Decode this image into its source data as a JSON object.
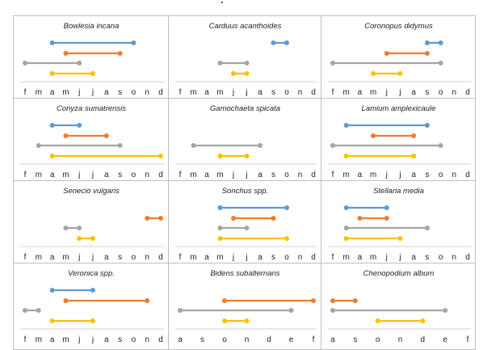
{
  "palette": [
    "#5b9bd5",
    "#ed7d31",
    "#a5a5a5",
    "#ffc000"
  ],
  "chart_data": [
    {
      "type": "range",
      "title": "Bowlesia incana",
      "categories": [
        "f",
        "m",
        "a",
        "m",
        "j",
        "j",
        "a",
        "s",
        "o",
        "n",
        "d"
      ],
      "series": [
        {
          "color": "#5b9bd5",
          "range": [
            2,
            8
          ]
        },
        {
          "color": "#ed7d31",
          "range": [
            3,
            7
          ]
        },
        {
          "color": "#a5a5a5",
          "range": [
            0,
            4
          ]
        },
        {
          "color": "#ffc000",
          "range": [
            2,
            5
          ]
        }
      ]
    },
    {
      "type": "range",
      "title": "Carduus acanthoides",
      "categories": [
        "f",
        "m",
        "a",
        "m",
        "j",
        "j",
        "a",
        "s",
        "o",
        "n",
        "d"
      ],
      "series": [
        {
          "color": "#5b9bd5",
          "range": [
            7,
            8
          ]
        },
        {
          "color": "#ed7d31",
          "range": null
        },
        {
          "color": "#a5a5a5",
          "range": [
            3,
            5
          ]
        },
        {
          "color": "#ffc000",
          "range": [
            4,
            5
          ]
        }
      ]
    },
    {
      "type": "range",
      "title": "Coronopus didymus",
      "categories": [
        "f",
        "m",
        "a",
        "m",
        "j",
        "j",
        "a",
        "s",
        "o",
        "n",
        "d"
      ],
      "series": [
        {
          "color": "#5b9bd5",
          "range": [
            7,
            8
          ]
        },
        {
          "color": "#ed7d31",
          "range": [
            4,
            7
          ]
        },
        {
          "color": "#a5a5a5",
          "range": [
            0,
            8
          ]
        },
        {
          "color": "#ffc000",
          "range": [
            3,
            5
          ]
        }
      ]
    },
    {
      "type": "range",
      "title": "Conyza sumatrensis",
      "categories": [
        "f",
        "m",
        "a",
        "m",
        "j",
        "j",
        "a",
        "s",
        "o",
        "n",
        "d"
      ],
      "series": [
        {
          "color": "#5b9bd5",
          "range": [
            2,
            4
          ]
        },
        {
          "color": "#ed7d31",
          "range": [
            3,
            6
          ]
        },
        {
          "color": "#a5a5a5",
          "range": [
            1,
            7
          ]
        },
        {
          "color": "#ffc000",
          "range": [
            2,
            10
          ]
        }
      ]
    },
    {
      "type": "range",
      "title": "Gamochaeta spicata",
      "categories": [
        "f",
        "m",
        "a",
        "m",
        "j",
        "j",
        "a",
        "s",
        "o",
        "n",
        "d"
      ],
      "series": [
        {
          "color": "#5b9bd5",
          "range": null
        },
        {
          "color": "#ed7d31",
          "range": null
        },
        {
          "color": "#a5a5a5",
          "range": [
            1,
            6
          ]
        },
        {
          "color": "#ffc000",
          "range": [
            3,
            5
          ]
        }
      ]
    },
    {
      "type": "range",
      "title": "Lamium amplexicaule",
      "categories": [
        "f",
        "m",
        "a",
        "m",
        "j",
        "j",
        "a",
        "s",
        "o",
        "n",
        "d"
      ],
      "series": [
        {
          "color": "#5b9bd5",
          "range": [
            1,
            7
          ]
        },
        {
          "color": "#ed7d31",
          "range": [
            3,
            6
          ]
        },
        {
          "color": "#a5a5a5",
          "range": [
            0,
            8
          ]
        },
        {
          "color": "#ffc000",
          "range": [
            1,
            6
          ]
        }
      ]
    },
    {
      "type": "range",
      "title": "Senecio vulgaris",
      "categories": [
        "f",
        "m",
        "a",
        "m",
        "j",
        "j",
        "a",
        "s",
        "o",
        "n",
        "d"
      ],
      "series": [
        {
          "color": "#5b9bd5",
          "range": null
        },
        {
          "color": "#ed7d31",
          "range": [
            9,
            10
          ]
        },
        {
          "color": "#a5a5a5",
          "range": [
            3,
            4
          ]
        },
        {
          "color": "#ffc000",
          "range": [
            4,
            5
          ]
        }
      ]
    },
    {
      "type": "range",
      "title": "Sonchus spp.",
      "categories": [
        "f",
        "m",
        "a",
        "m",
        "j",
        "j",
        "a",
        "s",
        "o",
        "n",
        "d"
      ],
      "series": [
        {
          "color": "#5b9bd5",
          "range": [
            3,
            8
          ]
        },
        {
          "color": "#ed7d31",
          "range": [
            4,
            7
          ]
        },
        {
          "color": "#a5a5a5",
          "range": [
            3,
            5
          ]
        },
        {
          "color": "#ffc000",
          "range": [
            3,
            8
          ]
        }
      ]
    },
    {
      "type": "range",
      "title": "Stellaria media",
      "categories": [
        "f",
        "m",
        "a",
        "m",
        "j",
        "j",
        "a",
        "s",
        "o",
        "n",
        "d"
      ],
      "series": [
        {
          "color": "#5b9bd5",
          "range": [
            1,
            4
          ]
        },
        {
          "color": "#ed7d31",
          "range": [
            2,
            4
          ]
        },
        {
          "color": "#a5a5a5",
          "range": [
            1,
            7
          ]
        },
        {
          "color": "#ffc000",
          "range": [
            1,
            5
          ]
        }
      ]
    },
    {
      "type": "range",
      "title": "Veronica spp.",
      "categories": [
        "f",
        "m",
        "a",
        "m",
        "j",
        "j",
        "a",
        "s",
        "o",
        "n",
        "d"
      ],
      "series": [
        {
          "color": "#5b9bd5",
          "range": [
            2,
            5
          ]
        },
        {
          "color": "#ed7d31",
          "range": [
            3,
            9
          ]
        },
        {
          "color": "#a5a5a5",
          "range": [
            0,
            1
          ]
        },
        {
          "color": "#ffc000",
          "range": [
            2,
            5
          ]
        }
      ]
    },
    {
      "type": "range",
      "title": "Bidens subalternans",
      "categories": [
        "a",
        "s",
        "o",
        "n",
        "d",
        "e",
        "f"
      ],
      "series": [
        {
          "color": "#5b9bd5",
          "range": null
        },
        {
          "color": "#ed7d31",
          "range": [
            2,
            6
          ]
        },
        {
          "color": "#a5a5a5",
          "range": [
            0,
            5
          ]
        },
        {
          "color": "#ffc000",
          "range": [
            2,
            3
          ]
        }
      ]
    },
    {
      "type": "range",
      "title": "Chenopodium album",
      "categories": [
        "a",
        "s",
        "o",
        "n",
        "d",
        "e",
        "f"
      ],
      "series": [
        {
          "color": "#5b9bd5",
          "range": null
        },
        {
          "color": "#ed7d31",
          "range": [
            0,
            1
          ]
        },
        {
          "color": "#a5a5a5",
          "range": [
            0,
            5
          ]
        },
        {
          "color": "#ffc000",
          "range": [
            2,
            4
          ]
        }
      ]
    }
  ]
}
